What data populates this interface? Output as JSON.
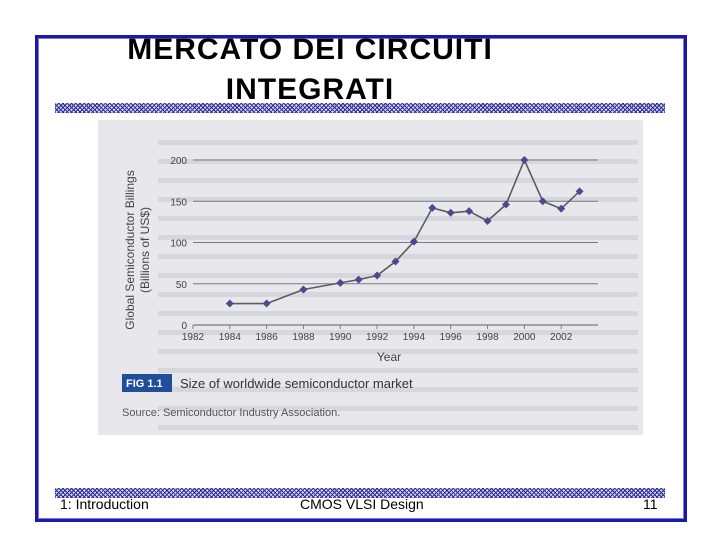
{
  "slide": {
    "title_line1": "MERCATO DEI CIRCUITI",
    "title_line2": "INTEGRATI",
    "footer_left": "1: Introduction",
    "footer_center": "CMOS VLSI Design",
    "footer_right": "11"
  },
  "figure": {
    "label": "FIG 1.1",
    "caption": "Size of worldwide semiconductor market",
    "source": "Source: Semiconductor Industry Association."
  },
  "chart_data": {
    "type": "line",
    "xlabel": "Year",
    "ylabel_line1": "Global Semiconductor Billings",
    "ylabel_line2": "(Billions of US$)",
    "xlim": [
      1982,
      2004
    ],
    "ylim": [
      0,
      200
    ],
    "x_ticks": [
      1982,
      1984,
      1986,
      1988,
      1990,
      1992,
      1994,
      1996,
      1998,
      2000,
      2002
    ],
    "y_ticks": [
      0,
      50,
      100,
      150,
      200
    ],
    "grid": "horizontal",
    "x": [
      1984,
      1986,
      1988,
      1990,
      1991,
      1992,
      1993,
      1994,
      1995,
      1996,
      1997,
      1998,
      1999,
      2000,
      2001,
      2002,
      2003
    ],
    "values": [
      26,
      26,
      43,
      51,
      55,
      60,
      77,
      101,
      142,
      136,
      138,
      126,
      146,
      200,
      150,
      141,
      162
    ],
    "colors": {
      "line": "#5a5a60",
      "marker": "#4a4a90",
      "grid": "#7a7a80"
    }
  }
}
